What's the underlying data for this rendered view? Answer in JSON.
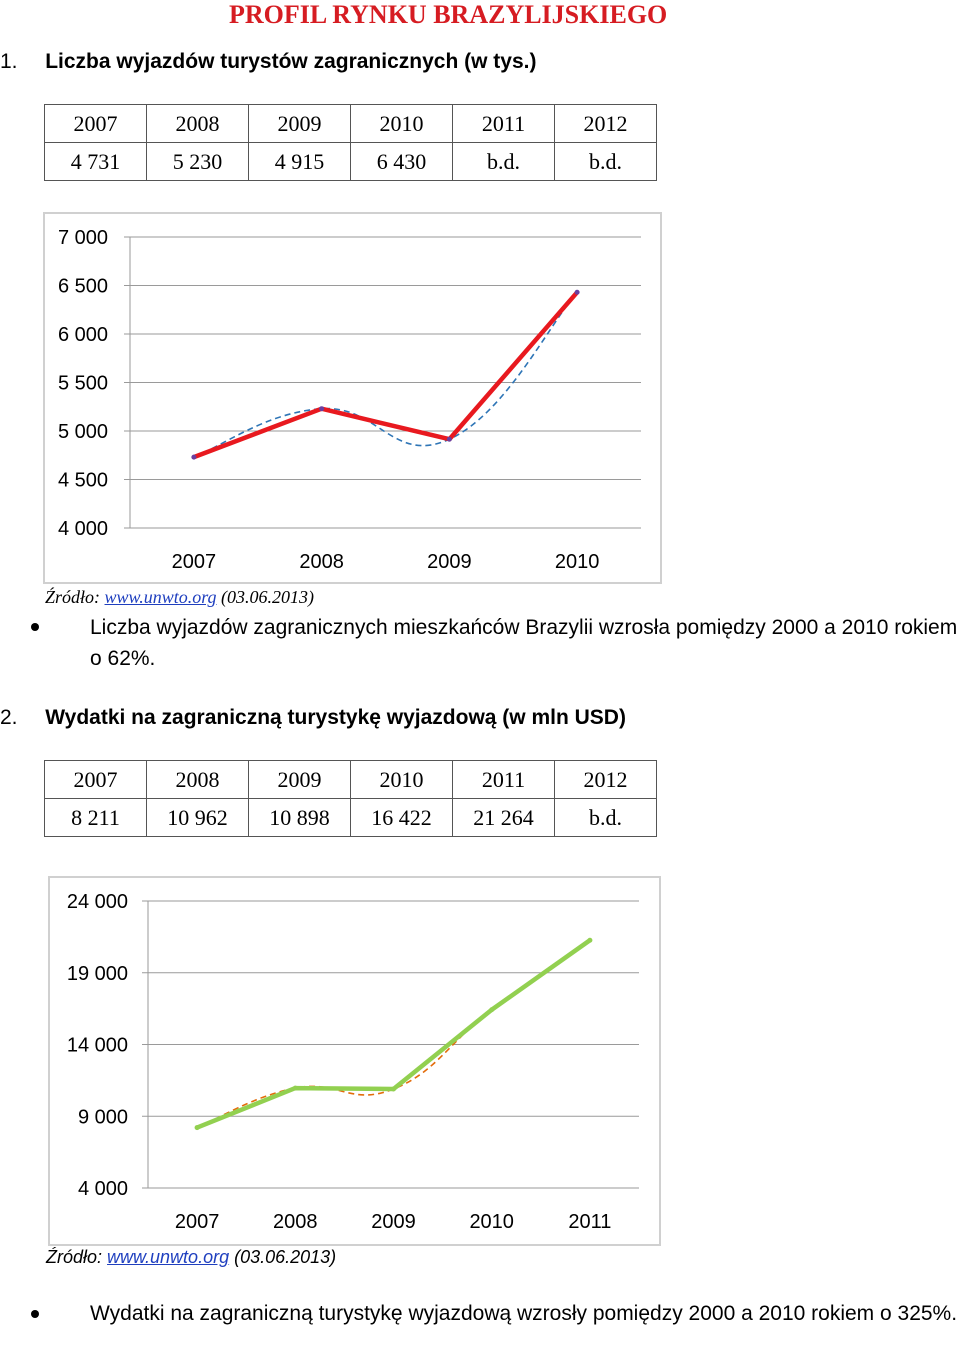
{
  "title": "PROFIL RYNKU BRAZYLIJSKIEGO",
  "section1": {
    "number": "1.",
    "heading": "Liczba wyjazdów turystów zagranicznych (w tys.)",
    "table": {
      "years": [
        "2007",
        "2008",
        "2009",
        "2010",
        "2011",
        "2012"
      ],
      "values": [
        "4 731",
        "5 230",
        "4 915",
        "6 430",
        "b.d.",
        "b.d."
      ]
    },
    "source_prefix": "Źródło: ",
    "source_link": "www.unwto.org",
    "source_suffix": " (03.06.2013)",
    "bullet": "Liczba wyjazdów zagranicznych mieszkańców Brazylii wzrosła pomiędzy 2000 a 2010 rokiem o 62%."
  },
  "section2": {
    "number": "2.",
    "heading": "Wydatki na zagraniczną turystykę wyjazdową (w mln USD)",
    "table": {
      "years": [
        "2007",
        "2008",
        "2009",
        "2010",
        "2011",
        "2012"
      ],
      "values": [
        "8 211",
        "10 962",
        "10 898",
        "16 422",
        "21 264",
        "b.d."
      ]
    },
    "source_prefix": "Źródło: ",
    "source_link": "www.unwto.org",
    "source_suffix": " (03.06.2013)",
    "bullet": "Wydatki na zagraniczną turystykę wyjazdową wzrosły pomiędzy 2000 a 2010 rokiem o 325%."
  },
  "chart_data": [
    {
      "type": "line",
      "x": [
        "2007",
        "2008",
        "2009",
        "2010"
      ],
      "series": [
        {
          "values": [
            4731,
            5230,
            4915,
            6430
          ],
          "color": "#e8191f",
          "style": "solid"
        },
        {
          "values": [
            4731,
            5230,
            4915,
            6430
          ],
          "color": "#2e75b6",
          "style": "dashed-trend"
        }
      ],
      "yticks": [
        "7 000",
        "6 500",
        "6 000",
        "5 500",
        "5 000",
        "4 500",
        "4 000"
      ],
      "ylim": [
        4000,
        7000
      ],
      "grid": true,
      "legend": "none"
    },
    {
      "type": "line",
      "x": [
        "2007",
        "2008",
        "2009",
        "2010",
        "2011"
      ],
      "series": [
        {
          "values": [
            8211,
            10962,
            10898,
            16422,
            21264
          ],
          "color": "#92d050",
          "style": "solid"
        },
        {
          "values": [
            8211,
            10962,
            10898,
            16422,
            21264
          ],
          "color": "#e36c0a",
          "style": "dashed-trend"
        }
      ],
      "yticks": [
        "24 000",
        "19 000",
        "14 000",
        "9 000",
        "4 000"
      ],
      "ylim": [
        4000,
        24000
      ],
      "grid": true,
      "legend": "none"
    }
  ]
}
